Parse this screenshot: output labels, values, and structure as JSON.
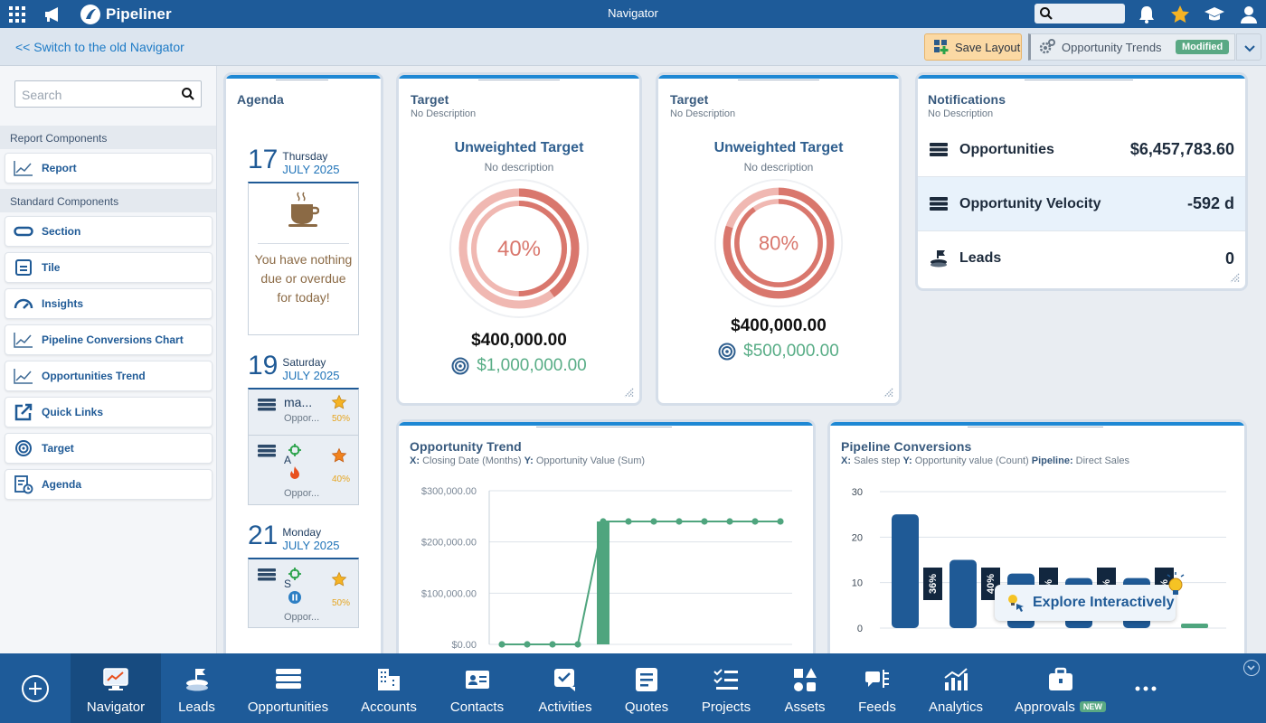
{
  "topbar": {
    "brand": "Pipeliner",
    "title": "Navigator",
    "search_placeholder": ""
  },
  "subbar": {
    "switch_link": "<< Switch to the old Navigator",
    "save_label": "Save Layout",
    "view_name": "Opportunity Trends",
    "view_badge": "Modified"
  },
  "sidebar": {
    "search_placeholder": "Search",
    "section_report": "Report Components",
    "report_items": [
      {
        "label": "Report",
        "icon": "line-chart-icon"
      }
    ],
    "section_standard": "Standard Components",
    "standard_items": [
      {
        "label": "Section",
        "icon": "section-icon"
      },
      {
        "label": "Tile",
        "icon": "tile-icon"
      },
      {
        "label": "Insights",
        "icon": "gauge-icon"
      },
      {
        "label": "Pipeline Conversions Chart",
        "icon": "line-chart-icon"
      },
      {
        "label": "Opportunities Trend",
        "icon": "line-chart-icon"
      },
      {
        "label": "Quick Links",
        "icon": "external-link-icon"
      },
      {
        "label": "Target",
        "icon": "target-icon"
      },
      {
        "label": "Agenda",
        "icon": "agenda-icon"
      }
    ]
  },
  "agenda": {
    "title": "Agenda",
    "days": [
      {
        "num": "17",
        "weekday": "Thursday",
        "month": "JULY 2025"
      },
      {
        "num": "19",
        "weekday": "Saturday",
        "month": "JULY 2025"
      },
      {
        "num": "21",
        "weekday": "Monday",
        "month": "JULY 2025"
      }
    ],
    "empty_msg": "You have nothing due or overdue for today!",
    "items": [
      {
        "title": "ma...",
        "sub": "Oppor...",
        "pct": "50%"
      },
      {
        "title": "A",
        "sub": "Oppor...",
        "pct": "40%"
      },
      {
        "title": "S",
        "sub": "Oppor...",
        "pct": "50%"
      }
    ]
  },
  "targets": [
    {
      "title": "Target",
      "desc": "No Description",
      "heading": "Unweighted Target",
      "sub": "No description",
      "pct_label": "40%",
      "pct": 0.4,
      "achieved": "$400,000.00",
      "goal": "$1,000,000.00"
    },
    {
      "title": "Target",
      "desc": "No Description",
      "heading": "Unweighted Target",
      "sub": "No description",
      "pct_label": "80%",
      "pct": 0.8,
      "achieved": "$400,000.00",
      "goal": "$500,000.00"
    }
  ],
  "notifications": {
    "title": "Notifications",
    "desc": "No Description",
    "rows": [
      {
        "label": "Opportunities",
        "value": "$6,457,783.60"
      },
      {
        "label": "Opportunity Velocity",
        "value": "-592 d"
      },
      {
        "label": "Leads",
        "value": "0"
      }
    ]
  },
  "trend": {
    "title": "Opportunity Trend",
    "x_key": "X:",
    "x_val": "Closing Date (Months)",
    "y_key": "Y:",
    "y_val": "Opportunity Value (Sum)"
  },
  "conversions": {
    "title": "Pipeline Conversions",
    "x_key": "X:",
    "x_val": "Sales step",
    "y_key": "Y:",
    "y_val": "Opportunity value (Count)",
    "p_key": "Pipeline:",
    "p_val": "Direct Sales",
    "explore": "Explore Interactively"
  },
  "chart_data": [
    {
      "type": "line",
      "title": "Opportunity Trend",
      "y_ticks": [
        "$300,000.00",
        "$200,000.00",
        "$100,000.00",
        "$0.00"
      ],
      "ylim": [
        0,
        300000
      ],
      "series": [
        {
          "values": [
            0,
            0,
            0,
            0,
            240000,
            240000,
            240000,
            240000,
            240000,
            240000,
            240000,
            240000
          ]
        }
      ],
      "bars": [
        {
          "index": 4,
          "value": 240000
        }
      ],
      "color": "#4fa57e"
    },
    {
      "type": "bar",
      "title": "Pipeline Conversions",
      "y_ticks": [
        "30",
        "20",
        "10",
        "0"
      ],
      "ylim": [
        0,
        30
      ],
      "values": [
        25,
        15,
        12,
        11,
        11,
        1
      ],
      "colors": [
        "#1f5a96",
        "#1f5a96",
        "#1f5a96",
        "#1f5a96",
        "#1f5a96",
        "#4fa57e"
      ],
      "conversion_labels": [
        "36%",
        "40%",
        "%",
        "%",
        "%"
      ]
    }
  ],
  "nav": [
    {
      "label": "Navigator",
      "icon": "navigator-icon",
      "active": true
    },
    {
      "label": "Leads",
      "icon": "leads-icon"
    },
    {
      "label": "Opportunities",
      "icon": "opportunities-icon"
    },
    {
      "label": "Accounts",
      "icon": "accounts-icon"
    },
    {
      "label": "Contacts",
      "icon": "contacts-icon"
    },
    {
      "label": "Activities",
      "icon": "activities-icon"
    },
    {
      "label": "Quotes",
      "icon": "quotes-icon"
    },
    {
      "label": "Projects",
      "icon": "projects-icon"
    },
    {
      "label": "Assets",
      "icon": "assets-icon"
    },
    {
      "label": "Feeds",
      "icon": "feeds-icon"
    },
    {
      "label": "Analytics",
      "icon": "analytics-icon"
    },
    {
      "label": "Approvals",
      "icon": "approvals-icon",
      "badge": "NEW"
    }
  ],
  "colors": {
    "brand": "#1e5b99",
    "accent": "#1e88d4",
    "green": "#58ad86",
    "ring": "#d9776d",
    "star": "#f5b324"
  }
}
